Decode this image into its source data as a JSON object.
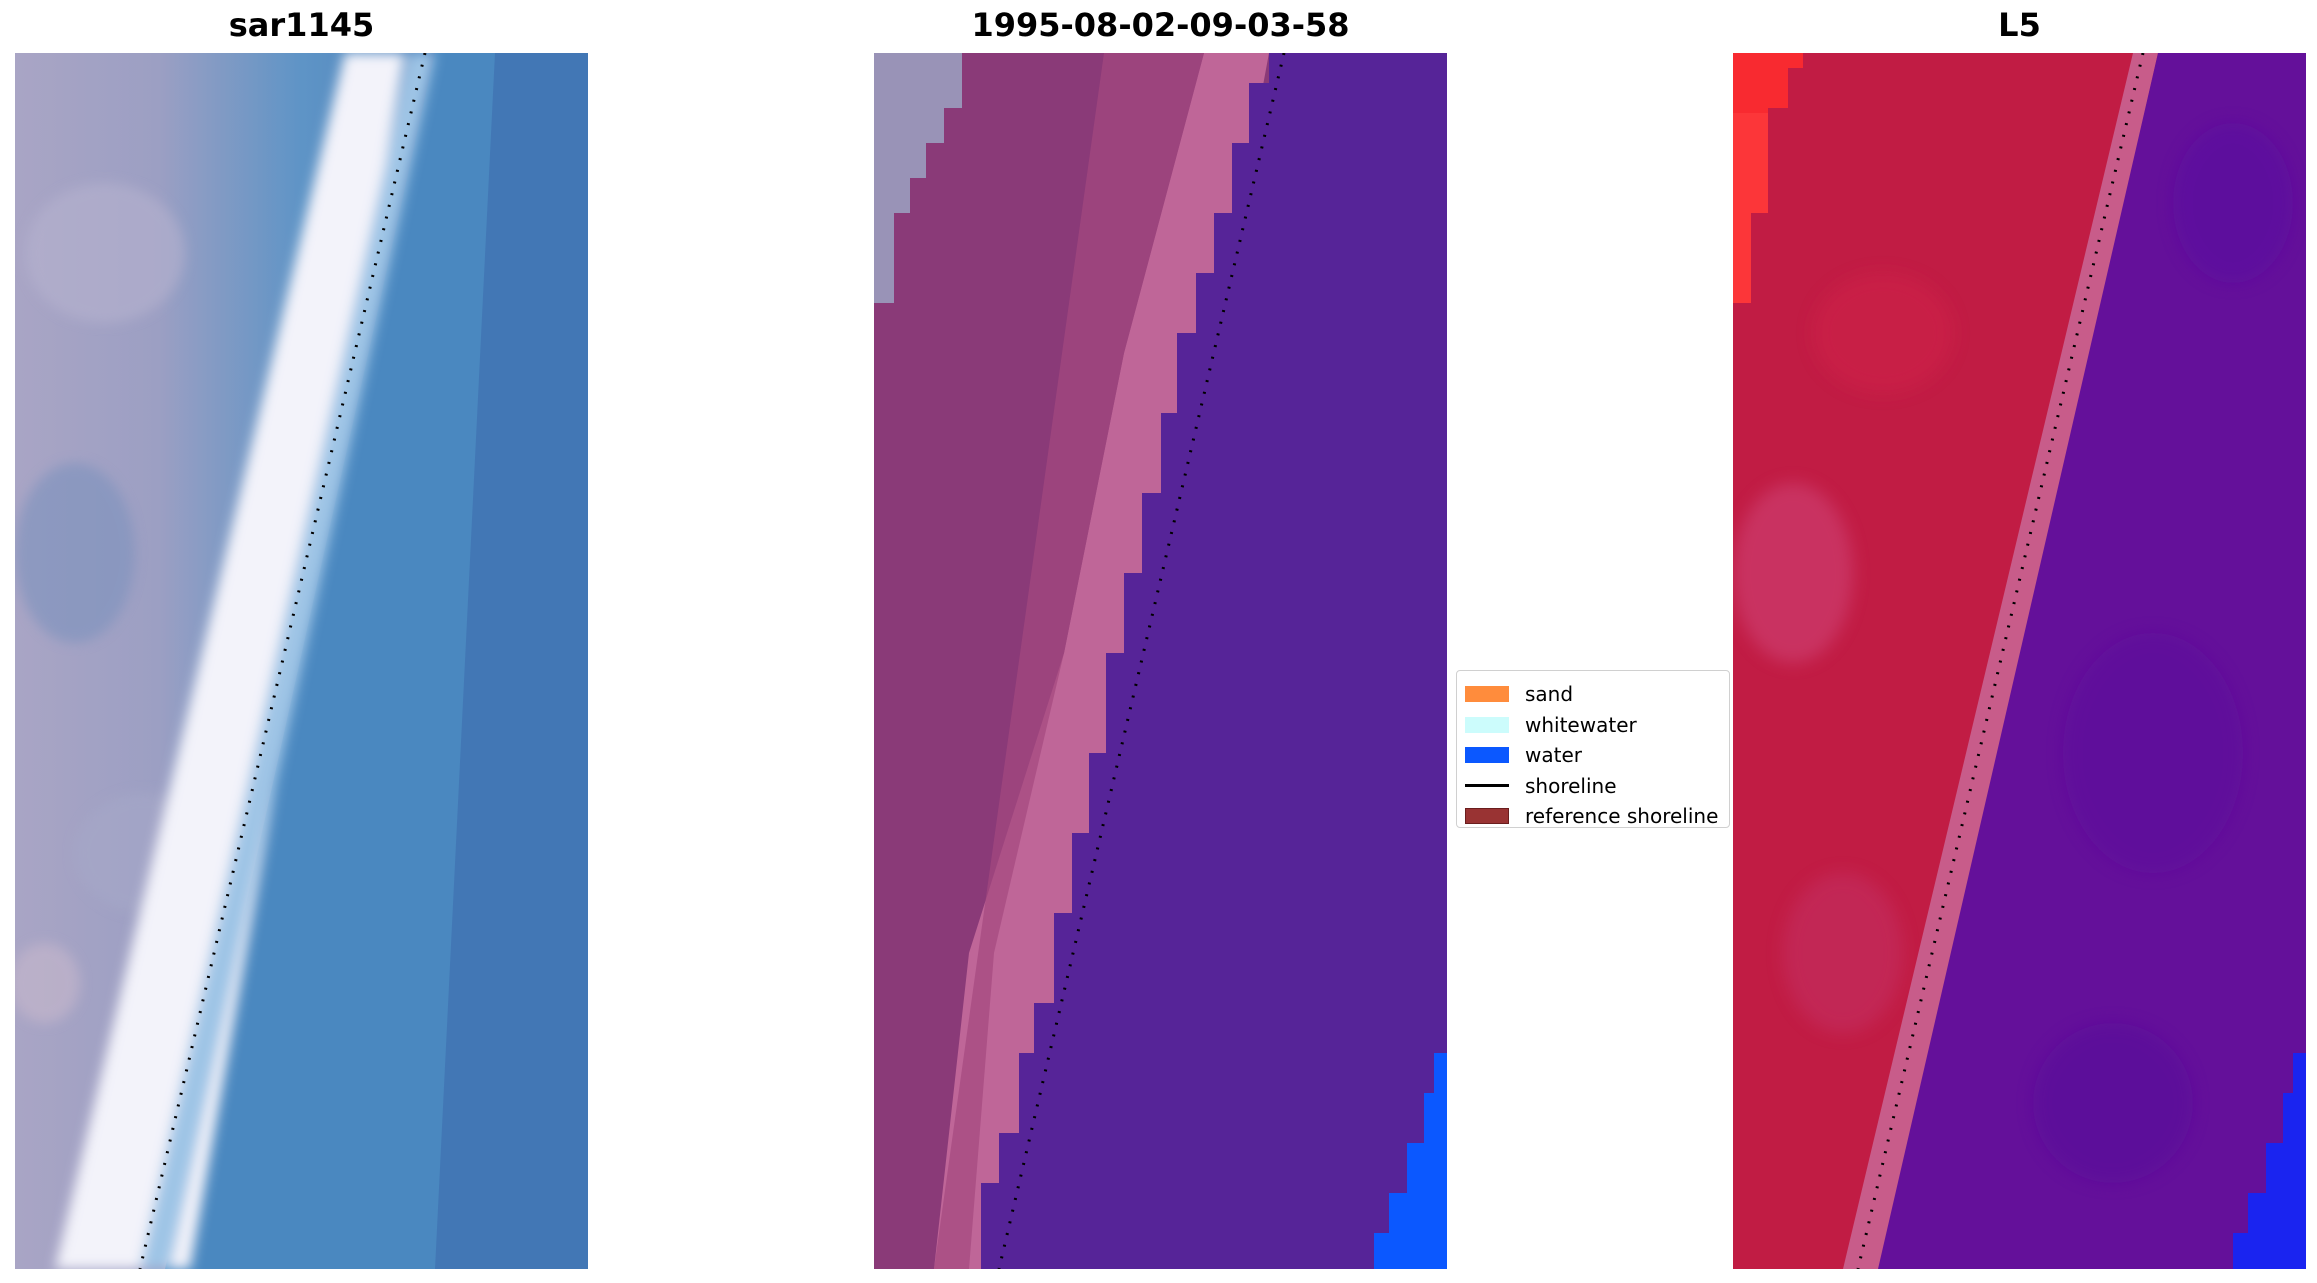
{
  "panels": [
    {
      "title": "sar1145"
    },
    {
      "title": "1995-08-02-09-03-58"
    },
    {
      "title": "L5"
    }
  ],
  "legend": {
    "items": [
      {
        "label": "sand",
        "color": "#ff8c3c",
        "kind": "patch"
      },
      {
        "label": "whitewater",
        "color": "#ccfcfc",
        "kind": "patch"
      },
      {
        "label": "water",
        "color": "#0b58ff",
        "kind": "patch"
      },
      {
        "label": "shoreline",
        "color": "#000000",
        "kind": "line"
      },
      {
        "label": "reference shoreline",
        "color": "#993333",
        "kind": "patch"
      }
    ]
  },
  "colors": {
    "rgb_land": "#a8a4c4",
    "rgb_surf": "#f4f4fa",
    "rgb_water": "#4a88c0",
    "class_land": "#8a3a78",
    "class_beach": "#bf6698",
    "class_sea": "#562498",
    "class_blue": "#0b58ff",
    "idx_land": "#c0173e",
    "idx_land_bright": "#ff2a2a",
    "idx_sea": "#64109a"
  }
}
